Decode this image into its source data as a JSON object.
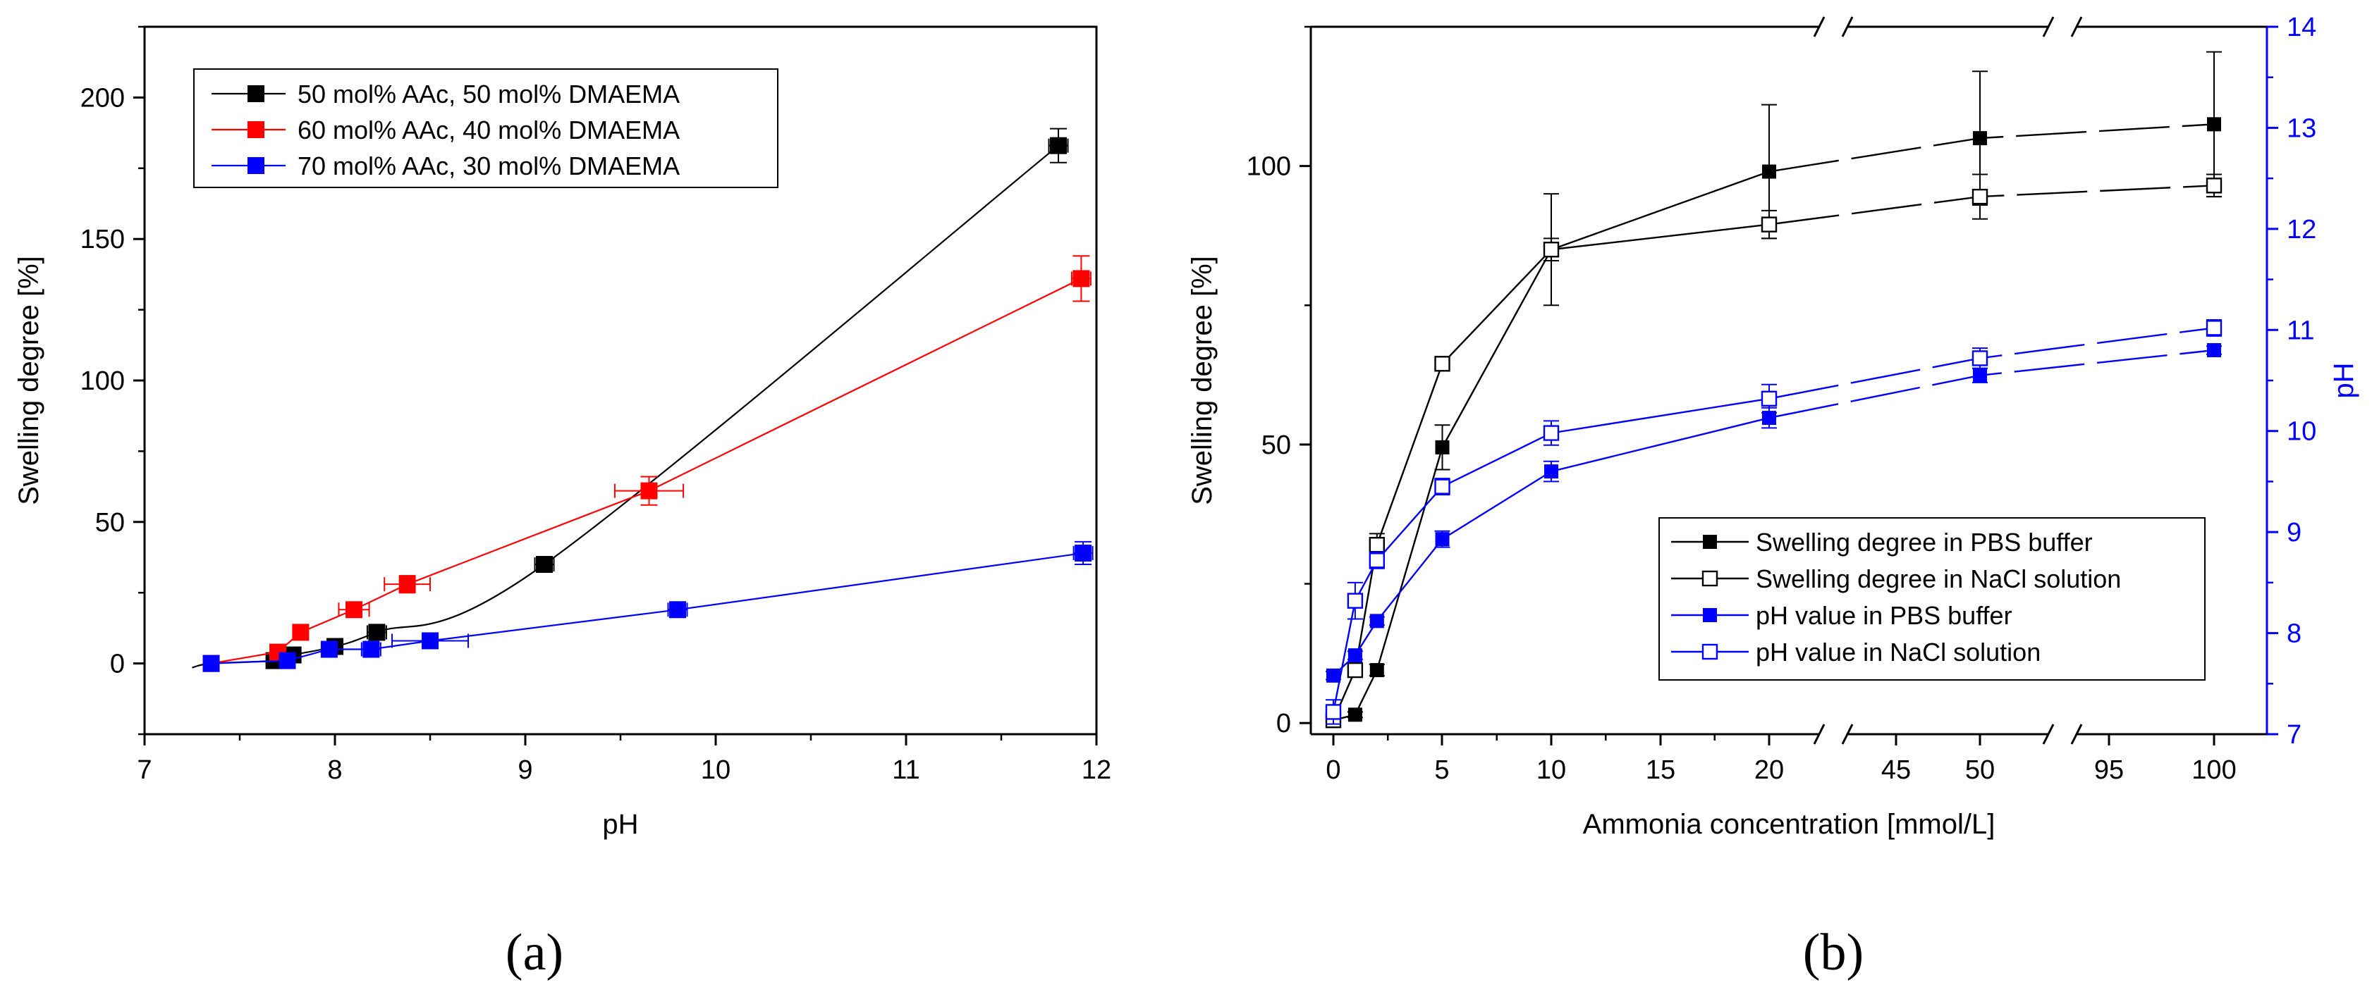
{
  "chart_data": [
    {
      "panel": "(a)",
      "type": "scatter",
      "xlabel": "pH",
      "ylabel": "Swelling degree [%]",
      "xlim": [
        7,
        12
      ],
      "ylim": [
        -25,
        225
      ],
      "x_ticks": [
        "7",
        "8",
        "9",
        "10",
        "11",
        "12"
      ],
      "y_ticks": [
        "0",
        "50",
        "100",
        "150",
        "200"
      ],
      "legend_position": "top-left",
      "series": [
        {
          "name": "50 mol% AAc, 50 mol% DMAEMA",
          "color": "#000000",
          "x": [
            7.35,
            7.68,
            7.78,
            8.0,
            8.22,
            9.1,
            11.8
          ],
          "y": [
            0,
            1,
            3,
            6,
            11,
            35,
            183
          ],
          "yerr": [
            1,
            1,
            1,
            1.5,
            2,
            2,
            6
          ],
          "xerr": [
            0,
            0,
            0,
            0,
            0.05,
            0.05,
            0.05
          ]
        },
        {
          "name": "60 mol% AAc, 40 mol% DMAEMA",
          "color": "#ff0000",
          "x": [
            7.35,
            7.7,
            7.82,
            8.1,
            8.38,
            9.65,
            11.92
          ],
          "y": [
            0,
            4,
            11,
            19,
            28,
            61,
            136
          ],
          "yerr": [
            1,
            1,
            1,
            1.5,
            3,
            5,
            8
          ],
          "xerr": [
            0,
            0,
            0,
            0.08,
            0.12,
            0.18,
            0.05
          ]
        },
        {
          "name": "70 mol% AAc, 30 mol% DMAEMA",
          "color": "#0000ff",
          "x": [
            7.35,
            7.75,
            7.97,
            8.19,
            8.5,
            9.8,
            11.93
          ],
          "y": [
            0,
            1,
            5,
            5,
            8,
            19,
            39
          ],
          "yerr": [
            1,
            1,
            1,
            2,
            2,
            2,
            4
          ],
          "xerr": [
            0,
            0,
            0,
            0.05,
            0.2,
            0.05,
            0.05
          ]
        }
      ]
    },
    {
      "panel": "(b)",
      "type": "line",
      "xlabel": "Ammonia concentration [mmol/L]",
      "ylabel": "Swelling degree [%]",
      "y2label": "pH",
      "x_categories": [
        "0",
        "1",
        "2",
        "5",
        "10",
        "20",
        "50",
        "100"
      ],
      "x_ticks": [
        "0",
        "5",
        "10",
        "15",
        "20",
        "45",
        "50",
        "95",
        "100"
      ],
      "x_axis_breaks": [
        "20–45",
        "50–95"
      ],
      "ylim": [
        -2,
        125
      ],
      "y_ticks": [
        "0",
        "50",
        "100"
      ],
      "y2lim": [
        7,
        14
      ],
      "y2_ticks": [
        "7",
        "8",
        "9",
        "10",
        "11",
        "12",
        "13",
        "14"
      ],
      "legend_position": "bottom-right",
      "series": [
        {
          "name": "Swelling degree in PBS buffer",
          "axis": "left",
          "color": "#000000",
          "marker": "filled-square",
          "x": [
            0,
            1,
            2,
            5,
            10,
            20,
            50,
            100
          ],
          "y": [
            0.5,
            1.5,
            9.5,
            49.5,
            85,
            99,
            105,
            107.5
          ],
          "yerr": [
            0.5,
            0.5,
            1,
            4,
            10,
            12,
            12,
            13
          ]
        },
        {
          "name": "Swelling degree in NaCl solution",
          "axis": "left",
          "color": "#000000",
          "marker": "open-square",
          "x": [
            0,
            1,
            2,
            5,
            10,
            20,
            50,
            100
          ],
          "y": [
            0.5,
            9.5,
            32,
            64.5,
            85,
            89.5,
            94.5,
            96.5
          ],
          "yerr": [
            0.5,
            0.5,
            2,
            0.5,
            2,
            2.5,
            4,
            2
          ]
        },
        {
          "name": "pH value in PBS buffer",
          "axis": "right",
          "color": "#0000ff",
          "marker": "filled-square",
          "x": [
            0,
            1,
            2,
            5,
            10,
            20,
            50,
            100
          ],
          "y": [
            7.58,
            7.78,
            8.12,
            8.93,
            9.6,
            10.13,
            10.55,
            10.8
          ],
          "yerr": [
            0.04,
            0.04,
            0.04,
            0.08,
            0.1,
            0.1,
            0.07,
            0.04
          ]
        },
        {
          "name": "pH value in NaCl solution",
          "axis": "right",
          "color": "#0000ff",
          "marker": "open-square",
          "x": [
            0,
            1,
            2,
            5,
            10,
            20,
            50,
            100
          ],
          "y": [
            7.22,
            8.32,
            8.72,
            9.45,
            9.98,
            10.32,
            10.72,
            11.02
          ],
          "yerr": [
            0.12,
            0.18,
            0.08,
            0.08,
            0.12,
            0.14,
            0.1,
            0.08
          ]
        }
      ]
    }
  ]
}
